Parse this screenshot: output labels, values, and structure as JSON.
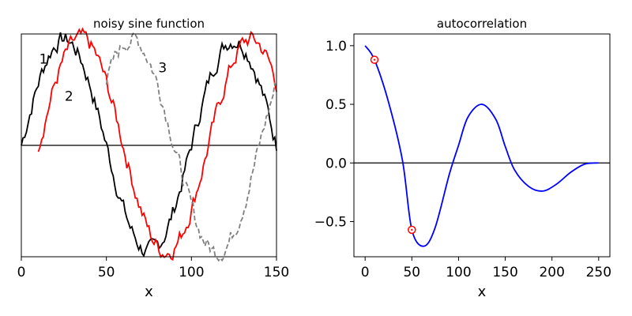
{
  "chart_data": [
    {
      "type": "line",
      "title": "noisy sine function",
      "xlabel": "x",
      "ylabel": "",
      "xlim": [
        0,
        150
      ],
      "ylim": [
        -1.05,
        1.05
      ],
      "xticks": [
        0,
        50,
        100,
        150
      ],
      "show_yticks": false,
      "grid": false,
      "zero_line": true,
      "series": [
        {
          "color": "#000000",
          "style": "solid",
          "x_start": 0,
          "x_end": 150,
          "x_step": 1,
          "sine_period": 100,
          "sine_phase": 0,
          "noise": 0.07
        },
        {
          "color": "#ff0000",
          "style": "solid",
          "x_start": 10,
          "x_end": 150,
          "x_step": 1,
          "sine_period": 100,
          "sine_phase": 10,
          "noise": 0.07
        },
        {
          "color": "#808080",
          "style": "dashed",
          "x_start": 50,
          "x_end": 150,
          "x_step": 1,
          "sine_period": 100,
          "sine_phase": 40,
          "noise": 0.07
        }
      ],
      "annotations": [
        {
          "text": "1",
          "x": 13,
          "y": 0.77
        },
        {
          "text": "2",
          "x": 28,
          "y": 0.42
        },
        {
          "text": "3",
          "x": 83,
          "y": 0.69
        }
      ]
    },
    {
      "type": "line",
      "title": "autocorrelation",
      "xlabel": "x",
      "ylabel": "",
      "xlim": [
        -12,
        262
      ],
      "ylim": [
        -0.8,
        1.1
      ],
      "xticks": [
        0,
        50,
        100,
        150,
        200,
        250
      ],
      "yticks": [
        -0.5,
        0.0,
        0.5,
        1.0
      ],
      "ytick_labels": [
        "−0.5",
        "0.0",
        "0.5",
        "1.0"
      ],
      "grid": false,
      "zero_line": true,
      "series": [
        {
          "color": "#0000ff",
          "style": "solid",
          "x": [
            0,
            10,
            25,
            40,
            50,
            63,
            75,
            90,
            100,
            110,
            125,
            140,
            150,
            160,
            175,
            190,
            205,
            220,
            235,
            250
          ],
          "y": [
            1.0,
            0.88,
            0.52,
            0.02,
            -0.57,
            -0.71,
            -0.55,
            -0.1,
            0.15,
            0.39,
            0.5,
            0.37,
            0.14,
            -0.06,
            -0.2,
            -0.24,
            -0.18,
            -0.08,
            -0.01,
            0.0
          ]
        }
      ],
      "markers": [
        {
          "x": 10,
          "y": 0.88,
          "color": "#ff0000"
        },
        {
          "x": 50,
          "y": -0.57,
          "color": "#ff0000"
        }
      ]
    }
  ]
}
